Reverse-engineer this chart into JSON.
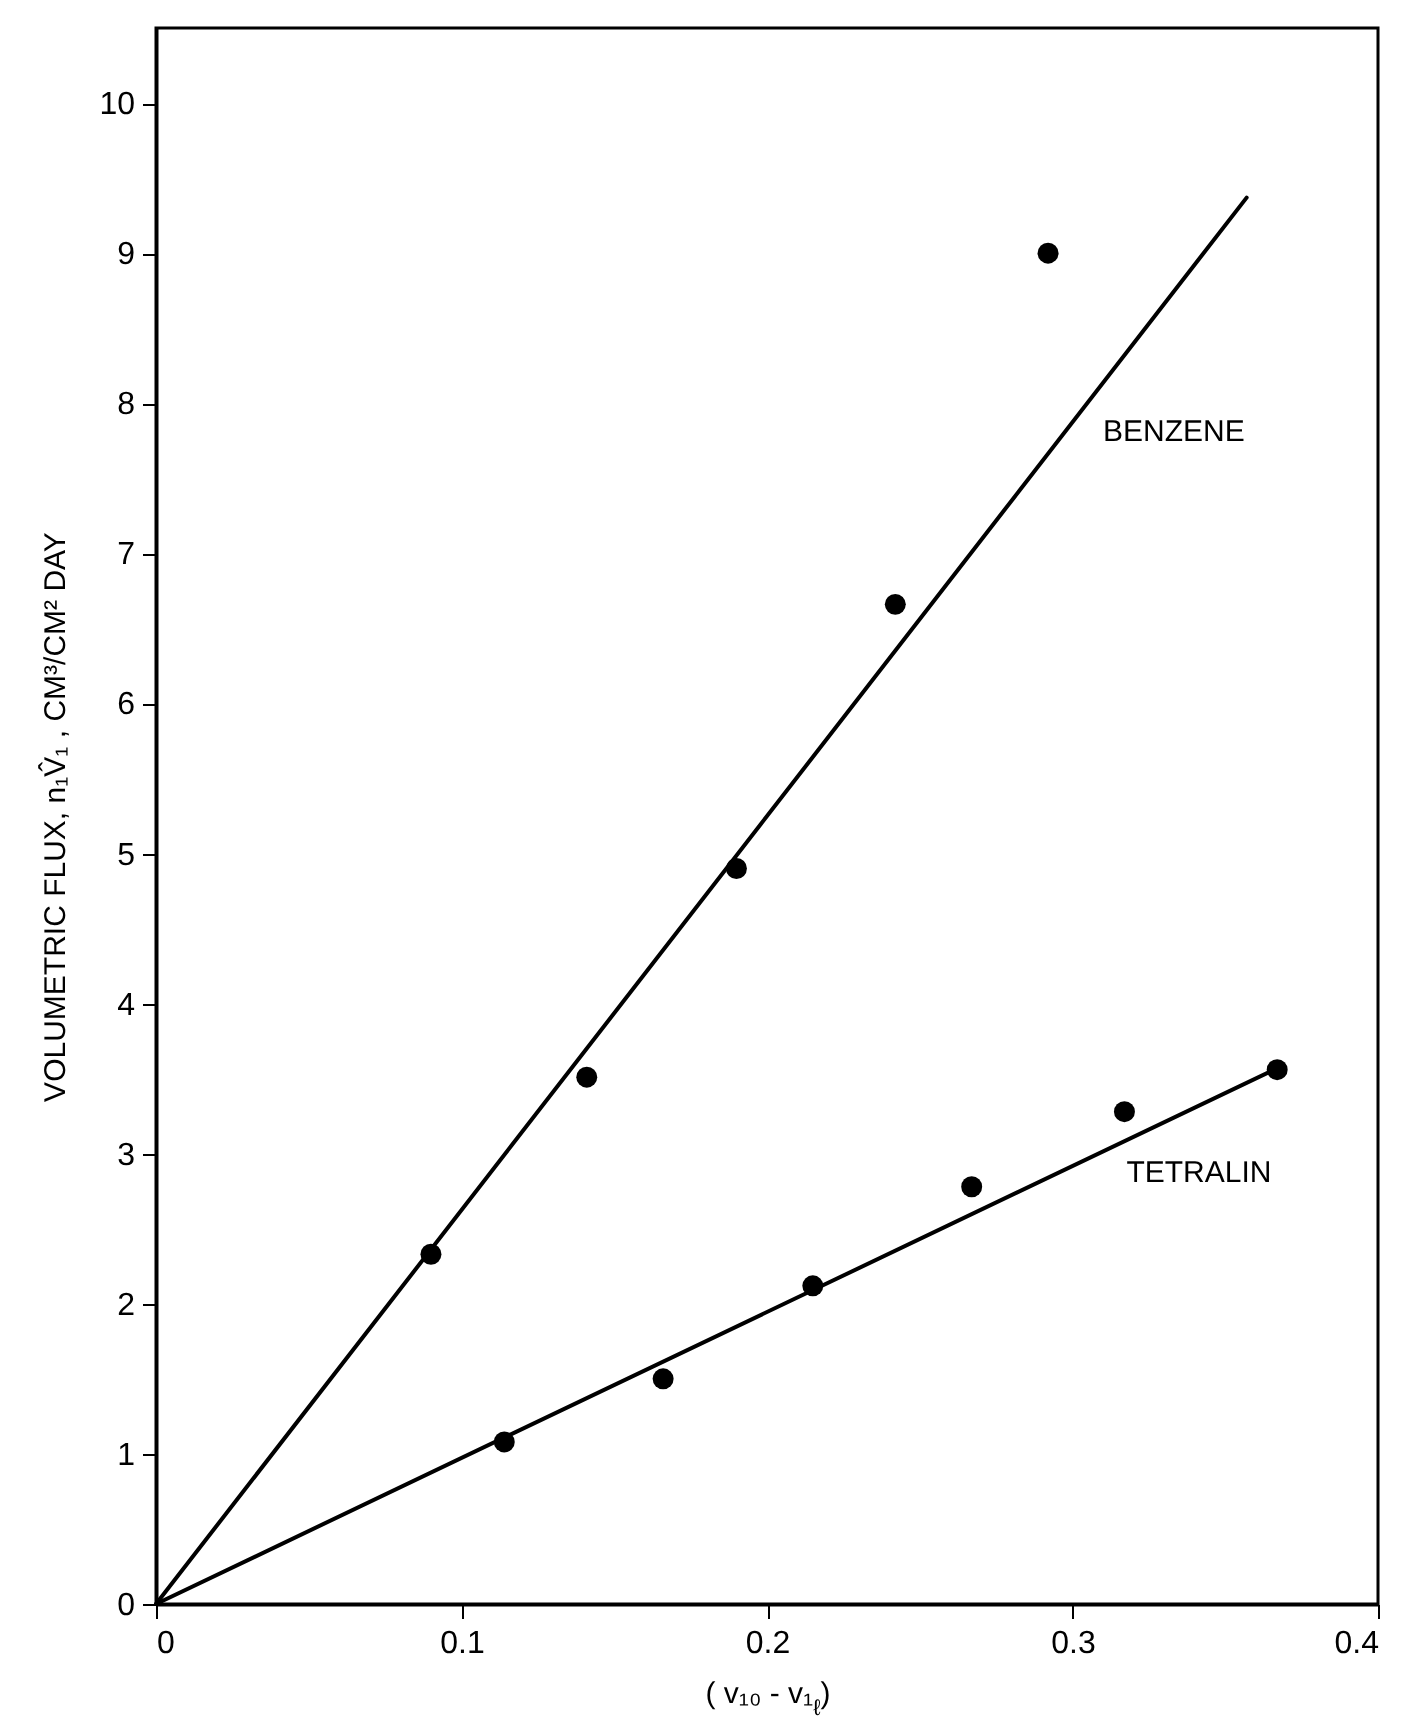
{
  "chart_data": {
    "type": "scatter",
    "xlabel": "( v₁₀ - v₁$_{ℓ}$)",
    "ylabel": "VOLUMETRIC  FLUX,  n₁V̂₁ ,  CM³/CM²  DAY",
    "xlim": [
      0,
      0.4
    ],
    "xticks": [
      0,
      0.1,
      0.2,
      0.3,
      0.4
    ],
    "ylim": [
      0,
      10.5
    ],
    "yticks": [
      0,
      1,
      2,
      3,
      4,
      5,
      6,
      7,
      8,
      9,
      10
    ],
    "grid": false,
    "series": [
      {
        "color": "#000000",
        "marker": "circle",
        "x": [
          0.09,
          0.141,
          0.19,
          0.242,
          0.292
        ],
        "values": [
          2.33,
          3.51,
          4.9,
          6.66,
          9.0
        ]
      },
      {
        "color": "#000000",
        "marker": "circle",
        "x": [
          0.114,
          0.166,
          0.215,
          0.267,
          0.317,
          0.367
        ],
        "values": [
          1.08,
          1.5,
          2.12,
          2.78,
          3.28,
          3.56
        ]
      },
      {
        "type": "line",
        "name": "BENZENE",
        "color": "#000000",
        "marker": "none",
        "line_style": "solid",
        "x": [
          0,
          0.357
        ],
        "values": [
          0,
          9.37
        ]
      },
      {
        "type": "line",
        "name": "TETRALIN",
        "color": "#000000",
        "marker": "none",
        "line_style": "solid",
        "x": [
          0,
          0.366
        ],
        "values": [
          0,
          3.56
        ]
      }
    ]
  }
}
